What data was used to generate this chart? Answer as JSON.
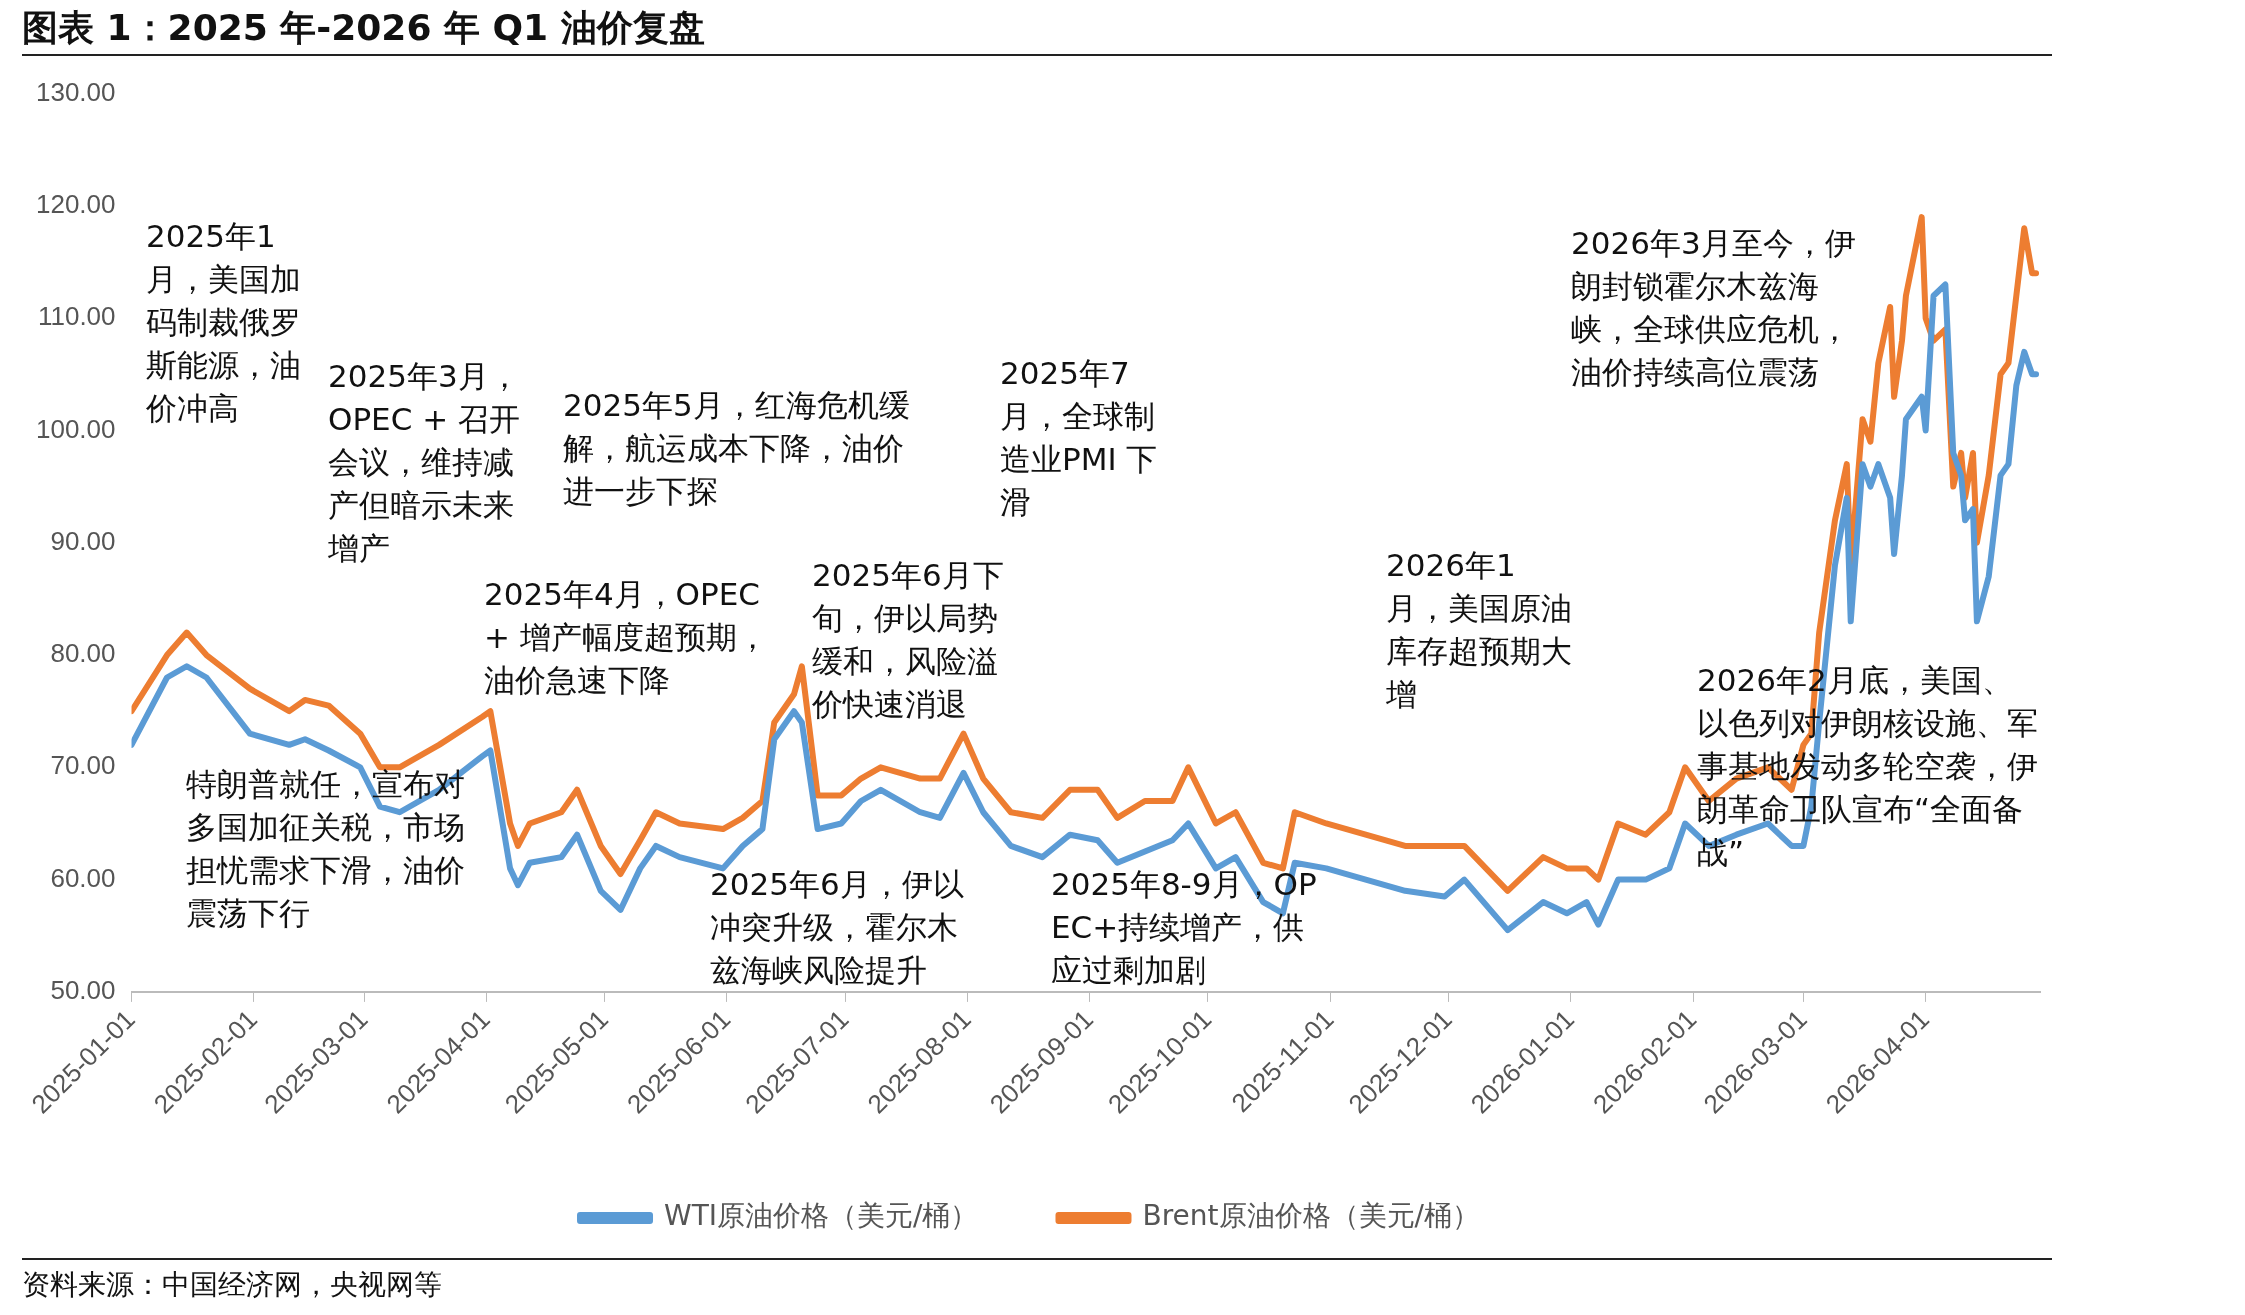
{
  "chart_data": {
    "type": "line",
    "title": "图表 1：2025 年-2026 年 Q1 油价复盘",
    "x": [
      "2025-01-01",
      "2025-01-10",
      "2025-01-15",
      "2025-01-20",
      "2025-01-31",
      "2025-02-10",
      "2025-02-14",
      "2025-02-20",
      "2025-02-28",
      "2025-03-05",
      "2025-03-10",
      "2025-03-20",
      "2025-03-31",
      "2025-04-02",
      "2025-04-07",
      "2025-04-09",
      "2025-04-12",
      "2025-04-20",
      "2025-04-24",
      "2025-04-30",
      "2025-05-05",
      "2025-05-10",
      "2025-05-14",
      "2025-05-20",
      "2025-05-31",
      "2025-06-05",
      "2025-06-10",
      "2025-06-13",
      "2025-06-18",
      "2025-06-20",
      "2025-06-24",
      "2025-06-30",
      "2025-07-05",
      "2025-07-10",
      "2025-07-20",
      "2025-07-25",
      "2025-07-31",
      "2025-08-05",
      "2025-08-12",
      "2025-08-20",
      "2025-08-27",
      "2025-09-03",
      "2025-09-08",
      "2025-09-15",
      "2025-09-22",
      "2025-09-26",
      "2025-10-03",
      "2025-10-08",
      "2025-10-15",
      "2025-10-20",
      "2025-10-23",
      "2025-10-31",
      "2025-11-10",
      "2025-11-20",
      "2025-11-30",
      "2025-12-05",
      "2025-12-16",
      "2025-12-25",
      "2025-12-31",
      "2026-01-05",
      "2026-01-08",
      "2026-01-13",
      "2026-01-20",
      "2026-01-26",
      "2026-01-30",
      "2026-02-05",
      "2026-02-12",
      "2026-02-20",
      "2026-02-26",
      "2026-03-01",
      "2026-03-03",
      "2026-03-05",
      "2026-03-09",
      "2026-03-12",
      "2026-03-13",
      "2026-03-16",
      "2026-03-18",
      "2026-03-20",
      "2026-03-23",
      "2026-03-24",
      "2026-03-26",
      "2026-03-27",
      "2026-03-31",
      "2026-04-01",
      "2026-04-03",
      "2026-04-06",
      "2026-04-08",
      "2026-04-10",
      "2026-04-11",
      "2026-04-13",
      "2026-04-14",
      "2026-04-17",
      "2026-04-20",
      "2026-04-22",
      "2026-04-24",
      "2026-04-26",
      "2026-04-28",
      "2026-04-29"
    ],
    "series": [
      {
        "name": "WTI原油价格（美元/桶）",
        "color": "#5b9bd5",
        "values": [
          72,
          78,
          79,
          78,
          73,
          72,
          72.5,
          71.5,
          70,
          66.5,
          66,
          68,
          71,
          71.5,
          61,
          59.5,
          61.5,
          62,
          64,
          59,
          57.3,
          61,
          63,
          62,
          61,
          63,
          64.5,
          72.5,
          75,
          74,
          64.5,
          65,
          67,
          68,
          66,
          65.5,
          69.5,
          66,
          63,
          62,
          64,
          63.5,
          61.5,
          62.5,
          63.5,
          65,
          61,
          62,
          58,
          57,
          61.5,
          61,
          60,
          59,
          58.5,
          60,
          55.5,
          58,
          57,
          58,
          56,
          60,
          60,
          61,
          65,
          63,
          64,
          65,
          63,
          63,
          66.5,
          74,
          88,
          94,
          83,
          97,
          95,
          97,
          94,
          89,
          96,
          101,
          103,
          100,
          112,
          113,
          98,
          96,
          92,
          93,
          83,
          87,
          96,
          97,
          104,
          107,
          105,
          105
        ]
      },
      {
        "name": "Brent原油价格（美元/桶）",
        "color": "#ed7d31",
        "values": [
          75,
          80,
          82,
          80,
          77,
          75,
          76,
          75.5,
          73,
          70,
          70,
          72,
          74.5,
          75,
          65,
          63,
          65,
          66,
          68,
          63,
          60.5,
          63.5,
          66,
          65,
          64.5,
          65.5,
          67,
          74,
          76.5,
          79,
          67.5,
          67.5,
          69,
          70,
          69,
          69,
          73,
          69,
          66,
          65.5,
          68,
          68,
          65.5,
          67,
          67,
          70,
          65,
          66,
          61.5,
          61,
          66,
          65,
          64,
          63,
          63,
          63,
          59,
          62,
          61,
          61,
          60,
          65,
          64,
          66,
          70,
          67,
          69,
          70,
          68,
          72,
          73,
          82,
          92,
          97,
          88,
          101,
          99,
          106,
          111,
          103,
          108,
          112,
          119,
          110,
          108,
          109,
          95,
          98,
          94,
          98,
          90,
          96,
          105,
          106,
          112,
          118,
          114,
          114
        ]
      }
    ],
    "xlim": [
      "2025-01-01",
      "2026-04-30"
    ],
    "xticks": [
      "2025-01-01",
      "2025-02-01",
      "2025-03-01",
      "2025-04-01",
      "2025-05-01",
      "2025-06-01",
      "2025-07-01",
      "2025-08-01",
      "2025-09-01",
      "2025-10-01",
      "2025-11-01",
      "2025-12-01",
      "2026-01-01",
      "2026-02-01",
      "2026-03-01",
      "2026-04-01"
    ],
    "ylim": [
      50,
      130
    ],
    "yticks": [
      {
        "value": 50,
        "label": "50.00"
      },
      {
        "value": 60,
        "label": "60.00"
      },
      {
        "value": 70,
        "label": "70.00"
      },
      {
        "value": 80,
        "label": "80.00"
      },
      {
        "value": 90,
        "label": "90.00"
      },
      {
        "value": 100,
        "label": "100.00"
      },
      {
        "value": 110,
        "label": "110.00"
      },
      {
        "value": 120,
        "label": "120.00"
      },
      {
        "value": 130,
        "label": "130.00"
      }
    ],
    "grid": false,
    "legend": "bottom",
    "marker": "none",
    "annotations": [
      "2025年1月，美国加码制裁俄罗斯能源，油价冲高",
      "2025年3月，OPEC + 召开会议，维持减产但暗示未来增产",
      "2025年5月，红海危机缓解，航运成本下降，油价进一步下探",
      "2025年7月，全球制造业PMI 下滑",
      "2025年4月，OPEC + 增产幅度超预期，油价急速下降",
      "2025年6月下旬，伊以局势缓和，风险溢价快速消退",
      "特朗普就任，宣布对多国加征关税，市场担忧需求下滑，油价震荡下行",
      "2025年6月，伊以冲突升级，霍尔木兹海峡风险提升",
      "2025年8-9月，OPEC+持续增产，供应过剩加剧",
      "2026年1月，美国原油库存超预期大增",
      "2026年3月至今，伊朗封锁霍尔木兹海峡，全球供应危机，油价持续高位震荡",
      "2026年2月底，美国、以色列对伊朗核设施、军事基地发动多轮空袭，伊朗革命卫队宣布“全面备战”",
      "资料来源：中国经济网，央视网等"
    ]
  }
}
